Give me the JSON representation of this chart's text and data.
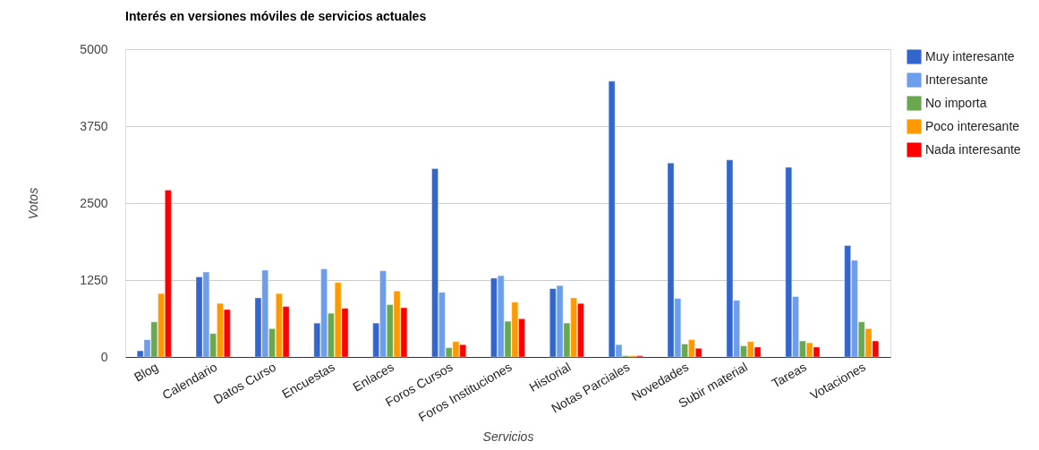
{
  "chart_data": {
    "type": "bar",
    "title": "Interés en versiones móviles de servicios actuales",
    "xlabel": "Servicios",
    "ylabel": "Votos",
    "categories": [
      "Blog",
      "Calendario",
      "Datos Curso",
      "Encuestas",
      "Enlaces",
      "Foros Cursos",
      "Foros Instituciones",
      "Historial",
      "Notas Parciales",
      "Novedades",
      "Subir material",
      "Tareas",
      "Votaciones"
    ],
    "series": [
      {
        "name": "Muy interesante",
        "color": "#3366cc",
        "values": [
          100,
          1300,
          960,
          550,
          550,
          3060,
          1280,
          1110,
          4480,
          3150,
          3200,
          3080,
          1810
        ]
      },
      {
        "name": "Interesante",
        "color": "#6d9eeb",
        "values": [
          280,
          1380,
          1410,
          1430,
          1400,
          1050,
          1320,
          1160,
          200,
          950,
          920,
          980,
          1570
        ]
      },
      {
        "name": "No importa",
        "color": "#6aa84f",
        "values": [
          570,
          380,
          460,
          710,
          850,
          150,
          580,
          550,
          20,
          210,
          180,
          260,
          570
        ]
      },
      {
        "name": "Poco interesante",
        "color": "#ff9900",
        "values": [
          1030,
          870,
          1030,
          1210,
          1070,
          250,
          890,
          960,
          20,
          280,
          250,
          230,
          460
        ]
      },
      {
        "name": "Nada interesante",
        "color": "#ff0000",
        "values": [
          2710,
          770,
          820,
          790,
          800,
          200,
          620,
          870,
          20,
          140,
          160,
          160,
          260
        ]
      }
    ],
    "ylim": [
      0,
      5000
    ],
    "yticks": [
      0,
      1250,
      2500,
      3750,
      5000
    ],
    "grid": "y",
    "legend": "right"
  }
}
